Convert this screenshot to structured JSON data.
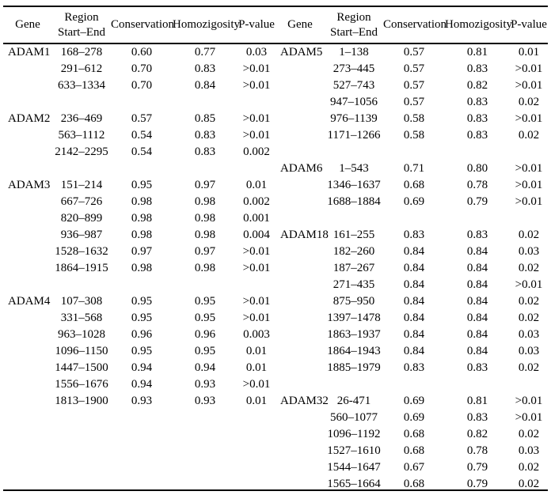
{
  "colors": {
    "background": "#ffffff",
    "text": "#000000",
    "rule": "#000000"
  },
  "table": {
    "header": {
      "gene": "Gene",
      "region_line1": "Region",
      "region_line2": "Start–End",
      "conservation": "Conservation",
      "homozygosity": "Homozigosity",
      "p_value": "P-value"
    },
    "panels": [
      {
        "groups": [
          {
            "gene": "ADAM1",
            "rows": [
              [
                "168–278",
                "0.60",
                "0.77",
                "0.03"
              ],
              [
                "291–612",
                "0.70",
                "0.83",
                ">0.01"
              ],
              [
                "633–1334",
                "0.70",
                "0.84",
                ">0.01"
              ]
            ]
          },
          {
            "gene": "ADAM2",
            "rows": [
              [
                "236–469",
                "0.57",
                "0.85",
                ">0.01"
              ],
              [
                "563–1112",
                "0.54",
                "0.83",
                ">0.01"
              ],
              [
                "2142–2295",
                "0.54",
                "0.83",
                "0.002"
              ]
            ]
          },
          {
            "gene": "ADAM3",
            "rows": [
              [
                "151–214",
                "0.95",
                "0.97",
                "0.01"
              ],
              [
                "667–726",
                "0.98",
                "0.98",
                "0.002"
              ],
              [
                "820–899",
                "0.98",
                "0.98",
                "0.001"
              ],
              [
                "936–987",
                "0.98",
                "0.98",
                "0.004"
              ],
              [
                "1528–1632",
                "0.97",
                "0.97",
                ">0.01"
              ],
              [
                "1864–1915",
                "0.98",
                "0.98",
                ">0.01"
              ]
            ]
          },
          {
            "gene": "ADAM4",
            "rows": [
              [
                "107–308",
                "0.95",
                "0.95",
                ">0.01"
              ],
              [
                "331–568",
                "0.95",
                "0.95",
                ">0.01"
              ],
              [
                "963–1028",
                "0.96",
                "0.96",
                "0.003"
              ],
              [
                "1096–1150",
                "0.95",
                "0.95",
                "0.01"
              ],
              [
                "1447–1500",
                "0.94",
                "0.94",
                "0.01"
              ],
              [
                "1556–1676",
                "0.94",
                "0.93",
                ">0.01"
              ],
              [
                "1813–1900",
                "0.93",
                "0.93",
                "0.01"
              ]
            ]
          }
        ]
      },
      {
        "groups": [
          {
            "gene": "ADAM5",
            "rows": [
              [
                "1–138",
                "0.57",
                "0.81",
                "0.01"
              ],
              [
                "273–445",
                "0.57",
                "0.83",
                ">0.01"
              ],
              [
                "527–743",
                "0.57",
                "0.82",
                ">0.01"
              ],
              [
                "947–1056",
                "0.57",
                "0.83",
                "0.02"
              ],
              [
                "976–1139",
                "0.58",
                "0.83",
                ">0.01"
              ],
              [
                "1171–1266",
                "0.58",
                "0.83",
                "0.02"
              ]
            ]
          },
          {
            "gene": "ADAM6",
            "rows": [
              [
                "1–543",
                "0.71",
                "0.80",
                ">0.01"
              ],
              [
                "1346–1637",
                "0.68",
                "0.78",
                ">0.01"
              ],
              [
                "1688–1884",
                "0.69",
                "0.79",
                ">0.01"
              ]
            ]
          },
          {
            "gene": "ADAM18",
            "rows": [
              [
                "161–255",
                "0.83",
                "0.83",
                "0.02"
              ],
              [
                "182–260",
                "0.84",
                "0.84",
                "0.03"
              ],
              [
                "187–267",
                "0.84",
                "0.84",
                "0.02"
              ],
              [
                "271–435",
                "0.84",
                "0.84",
                ">0.01"
              ],
              [
                "875–950",
                "0.84",
                "0.84",
                "0.02"
              ],
              [
                "1397–1478",
                "0.84",
                "0.84",
                "0.02"
              ],
              [
                "1863–1937",
                "0.84",
                "0.84",
                "0.03"
              ],
              [
                "1864–1943",
                "0.84",
                "0.84",
                "0.03"
              ],
              [
                "1885–1979",
                "0.83",
                "0.83",
                "0.02"
              ]
            ]
          },
          {
            "gene": "ADAM32",
            "rows": [
              [
                "26-471",
                "0.69",
                "0.81",
                ">0.01"
              ],
              [
                "560–1077",
                "0.69",
                "0.83",
                ">0.01"
              ],
              [
                "1096–1192",
                "0.68",
                "0.82",
                "0.02"
              ],
              [
                "1527–1610",
                "0.68",
                "0.78",
                "0.03"
              ],
              [
                "1544–1647",
                "0.67",
                "0.79",
                "0.02"
              ],
              [
                "1565–1664",
                "0.68",
                "0.79",
                "0.02"
              ]
            ]
          }
        ]
      }
    ]
  }
}
